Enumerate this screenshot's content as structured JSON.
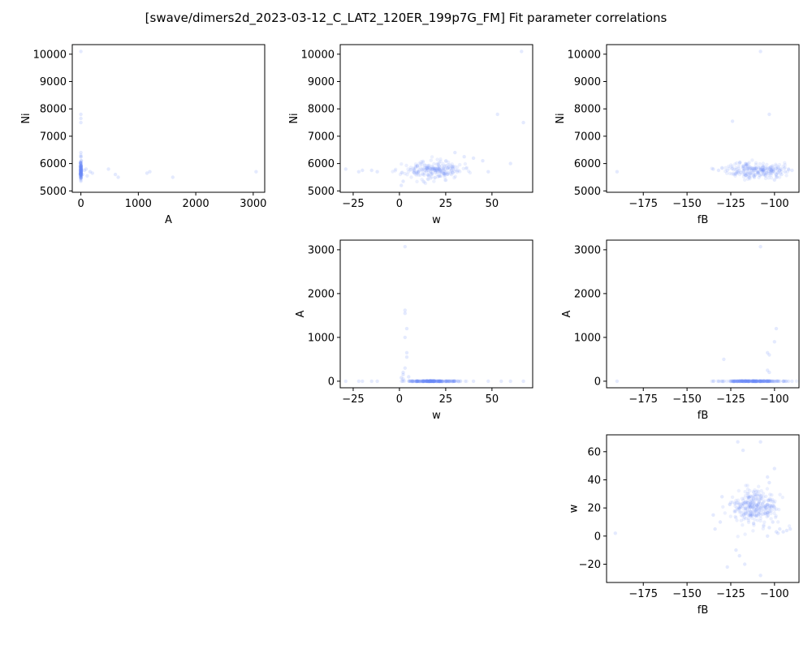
{
  "title": "[swave/dimers2d_2023-03-12_C_LAT2_120ER_199p7G_FM] Fit parameter correlations",
  "colors": {
    "point": "#6b8cf7",
    "axis": "#000000",
    "background": "#ffffff"
  },
  "chart_data": [
    {
      "id": "ni-vs-a",
      "type": "scatter",
      "xlabel": "A",
      "ylabel": "Ni",
      "xlim": [
        -150,
        3200
      ],
      "ylim": [
        4950,
        10350
      ],
      "xticks": [
        0,
        1000,
        2000,
        3000
      ],
      "yticks": [
        5000,
        6000,
        7000,
        8000,
        9000,
        10000
      ],
      "cluster": {
        "cx": 0,
        "cy": 5750,
        "sx": 4,
        "sy": 180,
        "n": 140,
        "seed": 11
      },
      "points": [
        [
          0,
          10100
        ],
        [
          0,
          7800
        ],
        [
          0,
          7650
        ],
        [
          0,
          7500
        ],
        [
          0,
          6400
        ],
        [
          0,
          6300
        ],
        [
          0,
          6250
        ],
        [
          0,
          5400
        ],
        [
          0,
          5350
        ],
        [
          160,
          5700
        ],
        [
          200,
          5650
        ],
        [
          480,
          5800
        ],
        [
          600,
          5600
        ],
        [
          650,
          5500
        ],
        [
          1150,
          5650
        ],
        [
          1200,
          5700
        ],
        [
          1600,
          5500
        ],
        [
          3050,
          5700
        ],
        [
          30,
          5600
        ],
        [
          60,
          5750
        ],
        [
          90,
          5800
        ],
        [
          110,
          5550
        ]
      ]
    },
    {
      "id": "ni-vs-w",
      "type": "scatter",
      "xlabel": "w",
      "ylabel": "Ni",
      "xlim": [
        -32,
        72
      ],
      "ylim": [
        4950,
        10350
      ],
      "xticks": [
        -25,
        0,
        25,
        50
      ],
      "yticks": [
        5000,
        6000,
        7000,
        8000,
        9000,
        10000
      ],
      "cluster": {
        "cx": 18,
        "cy": 5750,
        "sx": 8,
        "sy": 160,
        "n": 230,
        "seed": 23
      },
      "points": [
        [
          -29,
          5800
        ],
        [
          -22,
          5700
        ],
        [
          -20,
          5750
        ],
        [
          -15,
          5750
        ],
        [
          -12,
          5700
        ],
        [
          1,
          5200
        ],
        [
          2,
          5350
        ],
        [
          53,
          7800
        ],
        [
          67,
          7500
        ],
        [
          66,
          10100
        ],
        [
          60,
          6000
        ],
        [
          48,
          5700
        ],
        [
          40,
          6200
        ],
        [
          35,
          6250
        ],
        [
          30,
          6400
        ],
        [
          45,
          6100
        ]
      ]
    },
    {
      "id": "ni-vs-fb",
      "type": "scatter",
      "xlabel": "fB",
      "ylabel": "Ni",
      "xlim": [
        -196,
        -86
      ],
      "ylim": [
        4950,
        10350
      ],
      "xticks": [
        -175,
        -150,
        -125,
        -100
      ],
      "yticks": [
        5000,
        6000,
        7000,
        8000,
        9000,
        10000
      ],
      "cluster": {
        "cx": -111,
        "cy": 5760,
        "sx": 8,
        "sy": 150,
        "n": 230,
        "seed": 37
      },
      "points": [
        [
          -190,
          5700
        ],
        [
          -135,
          5800
        ],
        [
          -132,
          5750
        ],
        [
          -127,
          5750
        ],
        [
          -124,
          7550
        ],
        [
          -108,
          10100
        ],
        [
          -103,
          7800
        ],
        [
          -96,
          5600
        ],
        [
          -94,
          5700
        ],
        [
          -92,
          5800
        ],
        [
          -90,
          5750
        ],
        [
          -99,
          5500
        ],
        [
          -100,
          5400
        ],
        [
          -98,
          5650
        ],
        [
          -97,
          5750
        ]
      ]
    },
    {
      "id": "a-vs-w",
      "type": "scatter",
      "xlabel": "w",
      "ylabel": "A",
      "xlim": [
        -32,
        72
      ],
      "ylim": [
        -150,
        3220
      ],
      "xticks": [
        -25,
        0,
        25,
        50
      ],
      "yticks": [
        0,
        1000,
        2000,
        3000
      ],
      "cluster": {
        "cx": 18,
        "cy": 0,
        "sx": 7,
        "sy": 3,
        "n": 260,
        "seed": 41
      },
      "points": [
        [
          -29,
          0
        ],
        [
          -22,
          0
        ],
        [
          -20,
          0
        ],
        [
          -15,
          0
        ],
        [
          -12,
          0
        ],
        [
          3,
          3070
        ],
        [
          3,
          1620
        ],
        [
          3,
          1550
        ],
        [
          4,
          1200
        ],
        [
          3,
          1000
        ],
        [
          4,
          650
        ],
        [
          4,
          550
        ],
        [
          3,
          300
        ],
        [
          2,
          200
        ],
        [
          2,
          150
        ],
        [
          60,
          0
        ],
        [
          67,
          0
        ],
        [
          55,
          0
        ],
        [
          48,
          0
        ],
        [
          40,
          0
        ],
        [
          1,
          80
        ],
        [
          2,
          50
        ],
        [
          5,
          100
        ]
      ]
    },
    {
      "id": "a-vs-fb",
      "type": "scatter",
      "xlabel": "fB",
      "ylabel": "A",
      "xlim": [
        -196,
        -86
      ],
      "ylim": [
        -150,
        3220
      ],
      "xticks": [
        -175,
        -150,
        -125,
        -100
      ],
      "yticks": [
        0,
        1000,
        2000,
        3000
      ],
      "cluster": {
        "cx": -112,
        "cy": 0,
        "sx": 9,
        "sy": 3,
        "n": 260,
        "seed": 53
      },
      "points": [
        [
          -190,
          0
        ],
        [
          -135,
          0
        ],
        [
          -130,
          0
        ],
        [
          -129,
          500
        ],
        [
          -108,
          3070
        ],
        [
          -104,
          650
        ],
        [
          -103,
          600
        ],
        [
          -104,
          250
        ],
        [
          -103,
          200
        ],
        [
          -99,
          1200
        ],
        [
          -100,
          900
        ],
        [
          -98,
          0
        ],
        [
          -95,
          0
        ],
        [
          -92,
          0
        ],
        [
          -90,
          0
        ]
      ]
    },
    {
      "id": "w-vs-fb",
      "type": "scatter",
      "xlabel": "fB",
      "ylabel": "w",
      "xlim": [
        -196,
        -86
      ],
      "ylim": [
        -33,
        72
      ],
      "xticks": [
        -175,
        -150,
        -125,
        -100
      ],
      "yticks": [
        -20,
        0,
        20,
        40,
        60
      ],
      "cluster": {
        "cx": -112,
        "cy": 20,
        "sx": 6,
        "sy": 6,
        "n": 300,
        "seed": 67
      },
      "points": [
        [
          -191,
          2
        ],
        [
          -135,
          15
        ],
        [
          -134,
          5
        ],
        [
          -131,
          10
        ],
        [
          -130,
          28
        ],
        [
          -127,
          -22
        ],
        [
          -122,
          -10
        ],
        [
          -120,
          -14
        ],
        [
          -117,
          -20
        ],
        [
          -121,
          67
        ],
        [
          -118,
          61
        ],
        [
          -108,
          67
        ],
        [
          -108,
          -28
        ],
        [
          -104,
          42
        ],
        [
          -103,
          38
        ],
        [
          -100,
          48
        ],
        [
          -97,
          5
        ],
        [
          -95,
          3
        ],
        [
          -93,
          4
        ],
        [
          -91,
          5
        ],
        [
          -99,
          3
        ],
        [
          -101,
          10
        ],
        [
          -104,
          0
        ],
        [
          -98,
          2
        ],
        [
          -103,
          6
        ]
      ]
    }
  ]
}
